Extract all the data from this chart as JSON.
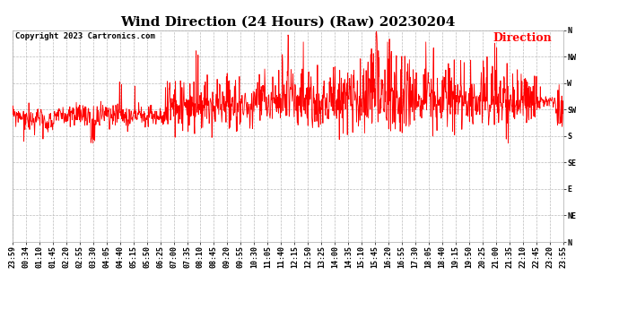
{
  "title": "Wind Direction (24 Hours) (Raw) 20230204",
  "copyright_text": "Copyright 2023 Cartronics.com",
  "legend_label": "Direction",
  "legend_color": "red",
  "line_color": "red",
  "background_color": "#ffffff",
  "grid_color": "#bbbbbb",
  "grid_style": "--",
  "ytick_labels": [
    "N",
    "NW",
    "W",
    "SW",
    "S",
    "SE",
    "E",
    "NE",
    "N"
  ],
  "ytick_values": [
    360,
    315,
    270,
    225,
    180,
    135,
    90,
    45,
    0
  ],
  "ylim": [
    0,
    360
  ],
  "xtick_labels": [
    "23:59",
    "00:34",
    "01:10",
    "01:45",
    "02:20",
    "02:55",
    "03:30",
    "04:05",
    "04:40",
    "05:15",
    "05:50",
    "06:25",
    "07:00",
    "07:35",
    "08:10",
    "08:45",
    "09:20",
    "09:55",
    "10:30",
    "11:05",
    "11:40",
    "12:15",
    "12:50",
    "13:25",
    "14:00",
    "14:35",
    "15:10",
    "15:45",
    "16:20",
    "16:55",
    "17:30",
    "18:05",
    "18:40",
    "19:15",
    "19:50",
    "20:25",
    "21:00",
    "21:35",
    "22:10",
    "22:45",
    "23:20",
    "23:55"
  ],
  "title_fontsize": 11,
  "copyright_fontsize": 6.5,
  "legend_fontsize": 9,
  "tick_fontsize": 6,
  "figsize": [
    6.9,
    3.75
  ],
  "dpi": 100
}
